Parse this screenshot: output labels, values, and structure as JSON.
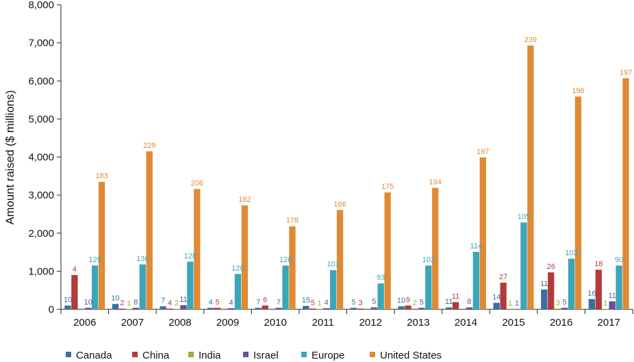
{
  "chart_data": {
    "type": "bar",
    "title": "",
    "xlabel": "",
    "ylabel": "Amount raised ($ millions)",
    "ylim": [
      0,
      8000
    ],
    "yticks": [
      "0",
      "1,000",
      "2,000",
      "3,000",
      "4,000",
      "5,000",
      "6,000",
      "7,000",
      "8,000"
    ],
    "ytick_values": [
      0,
      1000,
      2000,
      3000,
      4000,
      5000,
      6000,
      7000,
      8000
    ],
    "grid": false,
    "legend_position": "bottom",
    "categories": [
      "2006",
      "2007",
      "2008",
      "2009",
      "2010",
      "2011",
      "2012",
      "2013",
      "2014",
      "2015",
      "2016",
      "2017"
    ],
    "series": [
      {
        "name": "Canada",
        "color": "#3a6ea5",
        "values": [
          100,
          140,
          80,
          40,
          40,
          90,
          40,
          80,
          50,
          170,
          520,
          270
        ],
        "labels": [
          "10",
          "10",
          "7",
          "4",
          "7",
          "15",
          "5",
          "10",
          "11",
          "14",
          "11",
          "16"
        ]
      },
      {
        "name": "China",
        "color": "#b33a3a",
        "values": [
          900,
          20,
          20,
          40,
          100,
          20,
          20,
          100,
          190,
          700,
          970,
          1040
        ],
        "labels": [
          "4",
          "2",
          "4",
          "5",
          "6",
          "5",
          "3",
          "9",
          "11",
          "27",
          "26",
          "18"
        ]
      },
      {
        "name": "India",
        "color": "#8db33a",
        "values": [
          0,
          10,
          10,
          0,
          0,
          10,
          0,
          20,
          0,
          5,
          20,
          10
        ],
        "labels": [
          "",
          "1",
          "2",
          "",
          "",
          "1",
          "",
          "2",
          "",
          "1",
          "3",
          "1"
        ]
      },
      {
        "name": "Israel",
        "color": "#6a4f9b",
        "values": [
          40,
          40,
          110,
          30,
          40,
          30,
          50,
          40,
          50,
          5,
          40,
          210
        ],
        "labels": [
          "10",
          "8",
          "11",
          "4",
          "7",
          "4",
          "5",
          "5",
          "8",
          "1",
          "5",
          "11"
        ]
      },
      {
        "name": "Europe",
        "color": "#3aa6b9",
        "values": [
          1150,
          1180,
          1250,
          930,
          1150,
          1030,
          680,
          1150,
          1510,
          2280,
          1330,
          1150
        ],
        "labels": [
          "129",
          "136",
          "128",
          "120",
          "126",
          "101",
          "93",
          "102",
          "114",
          "105",
          "103",
          "90"
        ]
      },
      {
        "name": "United States",
        "color": "#e08a34",
        "values": [
          3350,
          4150,
          3160,
          2730,
          2180,
          2610,
          3070,
          3190,
          3990,
          6930,
          5590,
          6070
        ],
        "labels": [
          "183",
          "229",
          "206",
          "182",
          "178",
          "166",
          "175",
          "194",
          "197",
          "239",
          "196",
          "197"
        ]
      }
    ]
  }
}
